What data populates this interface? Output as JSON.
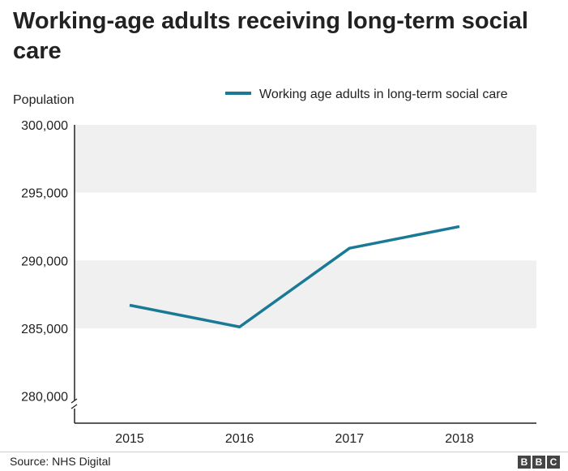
{
  "chart_data": {
    "type": "line",
    "title": "Working-age adults receiving long-term social care",
    "ylabel": "Population",
    "xlabel": "",
    "categories": [
      "2015",
      "2016",
      "2017",
      "2018"
    ],
    "series": [
      {
        "name": "Working age adults in long-term social care",
        "values": [
          286700,
          285100,
          290900,
          292500
        ],
        "color": "#1a7a96"
      }
    ],
    "ylim": [
      278000,
      300000
    ],
    "yticks": [
      280000,
      285000,
      290000,
      295000,
      300000
    ],
    "ytick_labels": [
      "280,000",
      "285,000",
      "290,000",
      "295,000",
      "300,000"
    ],
    "axis_break": true,
    "bands": [
      [
        285000,
        290000
      ],
      [
        295000,
        300000
      ]
    ],
    "band_color": "#f0f0f0",
    "legend_position": "top-right",
    "grid": false
  },
  "source": "Source: NHS Digital",
  "logo": {
    "letters": [
      "B",
      "B",
      "C"
    ],
    "color": "#444444"
  }
}
